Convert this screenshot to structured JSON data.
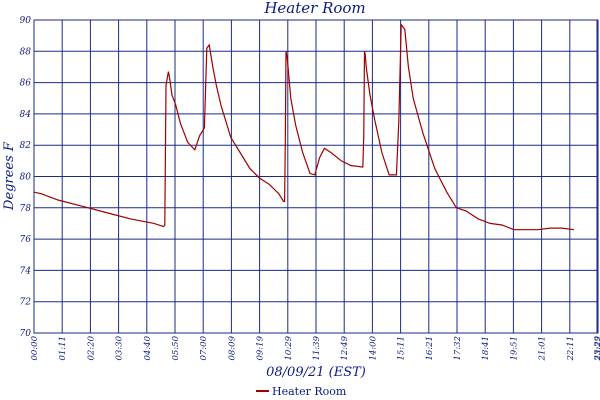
{
  "chart_data": {
    "type": "line",
    "title": "Heater Room",
    "xlabel": "08/09/21 (EST)",
    "ylabel": "Degrees F",
    "ylim": [
      70,
      90
    ],
    "yticks": [
      "70",
      "72",
      "74",
      "76",
      "78",
      "80",
      "82",
      "84",
      "86",
      "88",
      "90"
    ],
    "xticks": [
      "00:00",
      "01:11",
      "02:20",
      "03:30",
      "04:40",
      "05:50",
      "07:00",
      "08:09",
      "09:19",
      "10:29",
      "11:39",
      "12:49",
      "14:00",
      "15:11",
      "16:21",
      "17:32",
      "18:41",
      "19:51",
      "21:01",
      "22:11",
      "23:22",
      "23:29"
    ],
    "grid": true,
    "legend_position": "bottom",
    "series": [
      {
        "name": "Heater Room",
        "color": "#a00000",
        "x": [
          0.0,
          0.3,
          1.0,
          2.0,
          3.0,
          4.0,
          5.0,
          5.4,
          5.45,
          5.5,
          5.6,
          5.65,
          5.75,
          5.9,
          6.1,
          6.4,
          6.7,
          6.9,
          7.1,
          7.2,
          7.3,
          7.45,
          7.6,
          7.8,
          8.2,
          8.6,
          9.0,
          9.4,
          9.8,
          10.2,
          10.4,
          10.44,
          10.47,
          10.5,
          10.55,
          10.7,
          10.9,
          11.2,
          11.5,
          11.7,
          11.9,
          12.1,
          12.4,
          12.8,
          13.2,
          13.7,
          13.74,
          13.77,
          13.8,
          13.85,
          14.0,
          14.2,
          14.5,
          14.8,
          15.1,
          15.2,
          15.3,
          15.45,
          15.6,
          15.8,
          16.2,
          16.7,
          17.2,
          17.6,
          18.0,
          18.5,
          19.0,
          19.5,
          20.0,
          20.5,
          21.0,
          21.5,
          22.0,
          22.5
        ],
        "values": [
          79.0,
          78.9,
          78.5,
          78.1,
          77.7,
          77.3,
          77.0,
          76.8,
          76.9,
          85.8,
          86.7,
          86.3,
          85.2,
          84.6,
          83.4,
          82.2,
          81.7,
          82.6,
          83.1,
          88.2,
          88.4,
          87.0,
          85.8,
          84.5,
          82.5,
          81.5,
          80.5,
          79.9,
          79.5,
          78.9,
          78.4,
          78.4,
          82.1,
          88.0,
          87.6,
          85.0,
          83.3,
          81.5,
          80.2,
          80.1,
          81.2,
          81.8,
          81.5,
          81.0,
          80.7,
          80.6,
          82.7,
          88.0,
          87.8,
          86.9,
          85.2,
          83.6,
          81.5,
          80.1,
          80.1,
          83.5,
          89.7,
          89.4,
          87.0,
          85.0,
          82.8,
          80.5,
          79.0,
          78.0,
          77.8,
          77.3,
          77.0,
          76.9,
          76.6,
          76.6,
          76.6,
          76.7,
          76.7,
          76.6
        ]
      }
    ]
  }
}
